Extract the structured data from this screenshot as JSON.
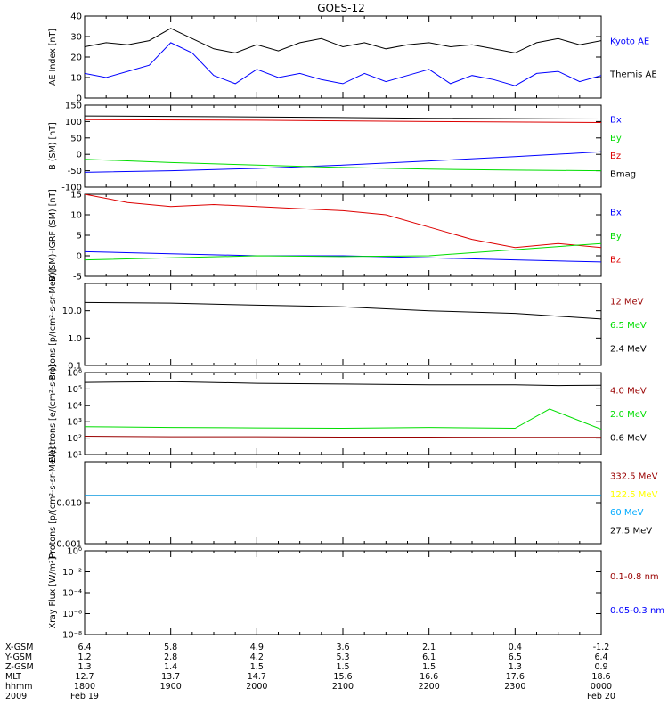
{
  "title": "GOES-12",
  "colors": {
    "black": "#000000",
    "blue": "#0000ff",
    "red": "#dd0000",
    "green": "#00dd00",
    "darkred": "#990000",
    "yellow": "#ffff00",
    "cyan": "#00aaff"
  },
  "chart_data": [
    {
      "type": "line",
      "ylabel": "AE Index [nT]",
      "ylim": [
        0,
        40
      ],
      "yticks": [
        "0",
        "10",
        "20",
        "30",
        "40"
      ],
      "legend": [
        {
          "label": "Kyoto AE",
          "color": "blue"
        },
        {
          "label": "Themis AE",
          "color": "black"
        }
      ],
      "series": [
        {
          "name": "Themis AE",
          "color": "black",
          "x": [
            18.0,
            18.25,
            18.5,
            18.75,
            19.0,
            19.25,
            19.5,
            19.75,
            20.0,
            20.25,
            20.5,
            20.75,
            21.0,
            21.25,
            21.5,
            21.75,
            22.0,
            22.25,
            22.5,
            22.75,
            23.0,
            23.25,
            23.5,
            23.75,
            24.0
          ],
          "y": [
            25,
            27,
            26,
            28,
            34,
            29,
            24,
            22,
            26,
            23,
            27,
            29,
            25,
            27,
            24,
            26,
            27,
            25,
            26,
            24,
            22,
            27,
            29,
            26,
            28
          ]
        },
        {
          "name": "Kyoto AE",
          "color": "blue",
          "x": [
            18.0,
            18.25,
            18.5,
            18.75,
            19.0,
            19.25,
            19.5,
            19.75,
            20.0,
            20.25,
            20.5,
            20.75,
            21.0,
            21.25,
            21.5,
            21.75,
            22.0,
            22.25,
            22.5,
            22.75,
            23.0,
            23.25,
            23.5,
            23.75,
            24.0
          ],
          "y": [
            12,
            10,
            13,
            16,
            27,
            22,
            11,
            7,
            14,
            10,
            12,
            9,
            7,
            12,
            8,
            11,
            14,
            7,
            11,
            9,
            6,
            12,
            13,
            8,
            11
          ]
        }
      ]
    },
    {
      "type": "line",
      "ylabel": "B (SM) [nT]",
      "ylim": [
        -100,
        150
      ],
      "yticks": [
        "-100",
        "-50",
        "0",
        "50",
        "100",
        "150"
      ],
      "legend": [
        {
          "label": "Bx",
          "color": "blue"
        },
        {
          "label": "By",
          "color": "green"
        },
        {
          "label": "Bz",
          "color": "red"
        },
        {
          "label": "Bmag",
          "color": "black"
        }
      ],
      "series": [
        {
          "name": "Bmag",
          "color": "black",
          "x": [
            18.0,
            20.0,
            22.0,
            24.0
          ],
          "y": [
            117,
            114,
            110,
            108
          ]
        },
        {
          "name": "Bz",
          "color": "red",
          "x": [
            18.0,
            20.0,
            22.0,
            24.0
          ],
          "y": [
            106,
            104,
            100,
            97
          ]
        },
        {
          "name": "Bx",
          "color": "blue",
          "x": [
            18.0,
            19.0,
            20.0,
            21.0,
            22.0,
            23.0,
            24.0
          ],
          "y": [
            -55,
            -50,
            -43,
            -33,
            -20,
            -7,
            8
          ]
        },
        {
          "name": "By",
          "color": "green",
          "x": [
            18.0,
            19.0,
            20.0,
            21.0,
            22.0,
            23.0,
            24.0
          ],
          "y": [
            -15,
            -25,
            -33,
            -40,
            -45,
            -48,
            -50
          ]
        }
      ]
    },
    {
      "type": "line",
      "ylabel": "B (SM)-IGRF (SM) [nT]",
      "ylim": [
        -5,
        15
      ],
      "yticks": [
        "-5",
        "0",
        "5",
        "10",
        "15"
      ],
      "legend": [
        {
          "label": "Bx",
          "color": "blue"
        },
        {
          "label": "By",
          "color": "green"
        },
        {
          "label": "Bz",
          "color": "red"
        }
      ],
      "series": [
        {
          "name": "Bz",
          "color": "red",
          "x": [
            18.0,
            18.5,
            19.0,
            19.5,
            20.0,
            20.5,
            21.0,
            21.5,
            22.0,
            22.5,
            23.0,
            23.5,
            24.0
          ],
          "y": [
            15,
            13,
            12,
            12.5,
            12,
            11.5,
            11,
            10,
            7,
            4,
            2,
            3,
            2
          ]
        },
        {
          "name": "Bx",
          "color": "blue",
          "x": [
            18.0,
            19.0,
            20.0,
            21.0,
            22.0,
            23.0,
            24.0
          ],
          "y": [
            1,
            0.5,
            0,
            0,
            -0.5,
            -1,
            -1.5
          ]
        },
        {
          "name": "By",
          "color": "green",
          "x": [
            18.0,
            19.0,
            20.0,
            21.0,
            22.0,
            23.0,
            24.0
          ],
          "y": [
            -1,
            -0.5,
            0,
            -0.2,
            0,
            1.5,
            3
          ]
        }
      ]
    },
    {
      "type": "line",
      "ylabel": "Protons [p/(cm²-s-sr-MeV)]",
      "yscale": "log",
      "ylim": [
        0.1,
        100
      ],
      "yticks": [
        "0.1",
        "1.0",
        "10.0"
      ],
      "legend": [
        {
          "label": "12 MeV",
          "color": "darkred"
        },
        {
          "label": "6.5 MeV",
          "color": "green"
        },
        {
          "label": "2.4 MeV",
          "color": "black"
        }
      ],
      "series": [
        {
          "name": "2.4 MeV",
          "color": "black",
          "x": [
            18.0,
            19.0,
            20.0,
            21.0,
            22.0,
            23.0,
            24.0
          ],
          "y": [
            20,
            19,
            16,
            14,
            10,
            8,
            5
          ]
        }
      ]
    },
    {
      "type": "line",
      "ylabel": "Electrons [e/(cm²-s-sr)]",
      "yscale": "log",
      "ylim": [
        10,
        1000000
      ],
      "yticks": [
        "10¹",
        "10²",
        "10³",
        "10⁴",
        "10⁵",
        "10⁶"
      ],
      "legend": [
        {
          "label": "4.0 MeV",
          "color": "darkred"
        },
        {
          "label": "2.0 MeV",
          "color": "green"
        },
        {
          "label": "0.6 MeV",
          "color": "black"
        }
      ],
      "series": [
        {
          "name": "0.6 MeV",
          "color": "black",
          "x": [
            18.0,
            19.0,
            20.0,
            21.0,
            22.0,
            23.0,
            23.5,
            24.0
          ],
          "y": [
            250000,
            280000,
            220000,
            200000,
            180000,
            180000,
            160000,
            170000
          ]
        },
        {
          "name": "2.0 MeV",
          "color": "green",
          "x": [
            18.0,
            19.0,
            20.0,
            21.0,
            22.0,
            23.0,
            23.4,
            24.0
          ],
          "y": [
            500,
            450,
            420,
            400,
            450,
            400,
            6000,
            350
          ]
        },
        {
          "name": "4.0 MeV",
          "color": "darkred",
          "x": [
            18.0,
            19.0,
            20.0,
            21.0,
            22.0,
            23.0,
            24.0
          ],
          "y": [
            130,
            120,
            120,
            115,
            115,
            110,
            110
          ]
        }
      ]
    },
    {
      "type": "line",
      "ylabel": "Protons [p/(cm²-s-sr-MeV)]",
      "yscale": "log",
      "ylim": [
        0.001,
        0.1
      ],
      "yticks": [
        "0.001",
        "0.010"
      ],
      "legend": [
        {
          "label": "332.5 MeV",
          "color": "darkred"
        },
        {
          "label": "122.5 MeV",
          "color": "yellow"
        },
        {
          "label": "60 MeV",
          "color": "cyan"
        },
        {
          "label": "27.5 MeV",
          "color": "black"
        }
      ],
      "series": [
        {
          "name": "27.5 MeV",
          "color": "black",
          "x": [
            18.0,
            21.0,
            24.0
          ],
          "y": [
            0.015,
            0.015,
            0.015
          ]
        },
        {
          "name": "60 MeV",
          "color": "cyan",
          "x": [
            18.0,
            21.0,
            24.0
          ],
          "y": [
            0.015,
            0.015,
            0.015
          ]
        }
      ]
    },
    {
      "type": "line",
      "ylabel": "Xray Flux [W/m²]",
      "yscale": "log",
      "ylim": [
        1e-08,
        1
      ],
      "yticks": [
        "10⁻⁸",
        "10⁻⁶",
        "10⁻⁴",
        "10⁻²",
        "10⁰"
      ],
      "legend": [
        {
          "label": "0.1-0.8 nm",
          "color": "darkred"
        },
        {
          "label": "0.05-0.3 nm",
          "color": "blue"
        }
      ],
      "series": []
    }
  ],
  "x_axis": {
    "range": [
      18.0,
      24.0
    ],
    "row_labels": [
      "X-GSM",
      "Y-GSM",
      "Z-GSM",
      "MLT",
      "hhmm",
      "2009"
    ],
    "columns": [
      {
        "values": [
          "6.4",
          "1.2",
          "1.3",
          "12.7",
          "1800"
        ],
        "date": "Feb 19"
      },
      {
        "values": [
          "5.8",
          "2.8",
          "1.4",
          "13.7",
          "1900"
        ],
        "date": ""
      },
      {
        "values": [
          "4.9",
          "4.2",
          "1.5",
          "14.7",
          "2000"
        ],
        "date": ""
      },
      {
        "values": [
          "3.6",
          "5.3",
          "1.5",
          "15.6",
          "2100"
        ],
        "date": ""
      },
      {
        "values": [
          "2.1",
          "6.1",
          "1.5",
          "16.6",
          "2200"
        ],
        "date": ""
      },
      {
        "values": [
          "0.4",
          "6.5",
          "1.3",
          "17.6",
          "2300"
        ],
        "date": ""
      },
      {
        "values": [
          "-1.2",
          "6.4",
          "0.9",
          "18.6",
          "0000"
        ],
        "date": "Feb 20"
      }
    ]
  }
}
